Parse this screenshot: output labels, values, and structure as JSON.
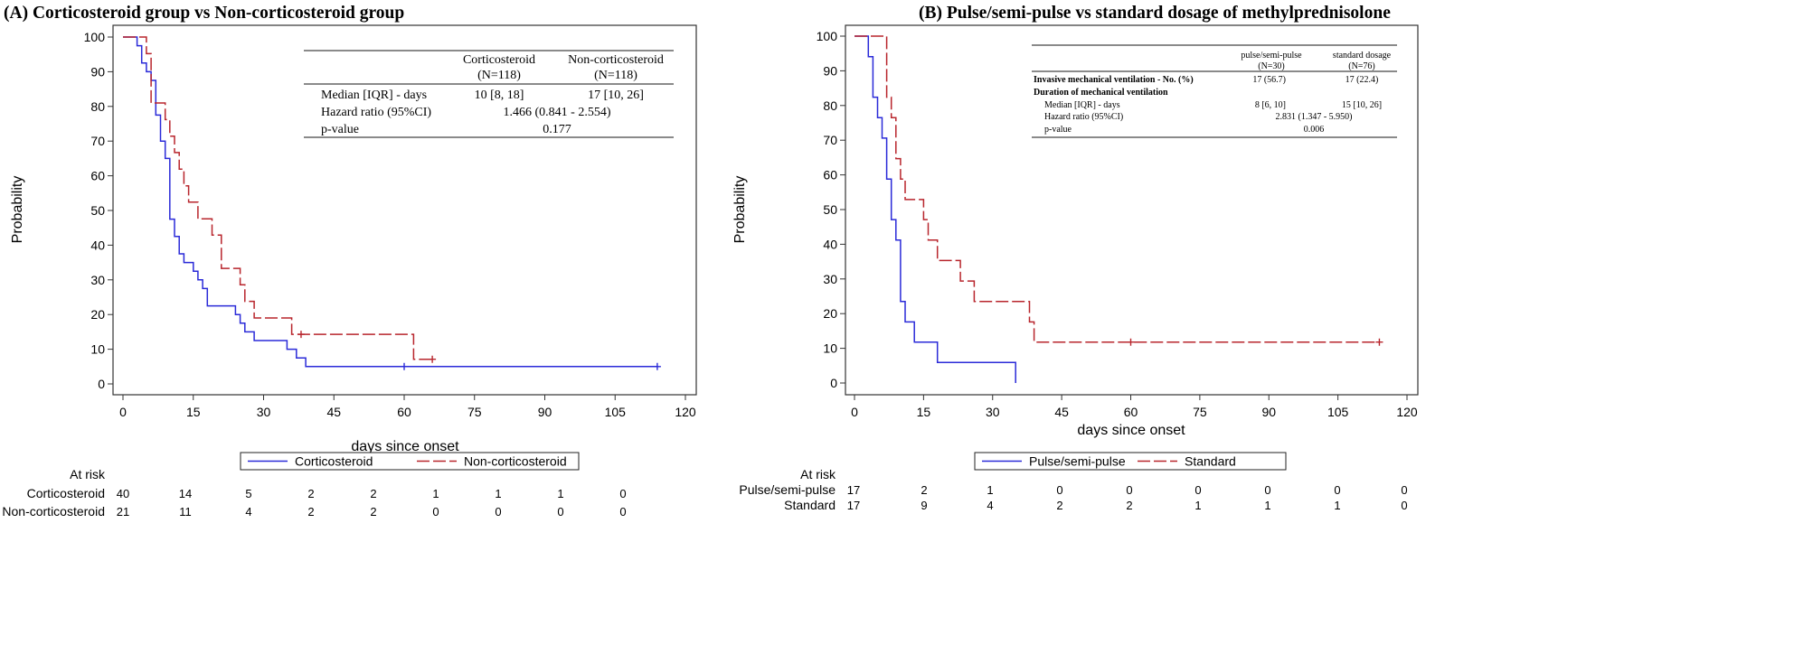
{
  "chart_data": [
    {
      "type": "line",
      "step": true,
      "title": "(A) Corticosteroid group vs Non-corticosteroid group",
      "xlabel": "days since onset",
      "ylabel": "Probability",
      "xlim": [
        0,
        120
      ],
      "ylim": [
        0,
        100
      ],
      "x_ticks": [
        0,
        15,
        30,
        45,
        60,
        75,
        90,
        105,
        120
      ],
      "y_ticks": [
        0,
        10,
        20,
        30,
        40,
        50,
        60,
        70,
        80,
        90,
        100
      ],
      "grid": false,
      "legend_position": "bottom",
      "series": [
        {
          "name": "Corticosteroid",
          "color": "#2a2ad8",
          "dash": "solid",
          "x": [
            0,
            3,
            4,
            5,
            6,
            7,
            8,
            9,
            10,
            11,
            12,
            13,
            14,
            15,
            16,
            17,
            18,
            24,
            25,
            26,
            28,
            35,
            37,
            39,
            114
          ],
          "y": [
            100,
            97.5,
            92.5,
            90,
            87.5,
            77.5,
            70,
            65,
            47.5,
            42.5,
            37.5,
            35,
            35,
            32.5,
            30,
            27.5,
            22.5,
            20,
            17.5,
            15,
            12.5,
            10,
            7.5,
            5,
            5
          ],
          "censored_x": [
            60,
            114
          ],
          "censored_y": [
            5,
            5
          ]
        },
        {
          "name": "Non-corticosteroid",
          "color": "#b8252c",
          "dash": "dashed",
          "x": [
            0,
            5,
            6,
            7,
            9,
            10,
            11,
            12,
            13,
            14,
            16,
            19,
            21,
            25,
            26,
            28,
            36,
            62,
            66
          ],
          "y": [
            100,
            95.2,
            81,
            81,
            76.2,
            71.4,
            66.7,
            61.9,
            57.1,
            52.4,
            47.6,
            42.9,
            33.3,
            28.6,
            23.8,
            19,
            14.3,
            7.1,
            7.1
          ],
          "censored_x": [
            38,
            66
          ],
          "censored_y": [
            14.3,
            7.1
          ]
        }
      ],
      "inset_table": {
        "col_headers": [
          "Corticosteroid",
          "Non-corticosteroid"
        ],
        "col_sub": [
          "(N=118)",
          "(N=118)"
        ],
        "rows": [
          {
            "label": "Median [IQR] - days",
            "values": [
              "10 [8, 18]",
              "17 [10, 26]"
            ],
            "span": ""
          },
          {
            "label": "Hazard ratio (95%CI)",
            "values": [],
            "span": "1.466 (0.841 - 2.554)"
          },
          {
            "label": "p-value",
            "values": [],
            "span": "0.177"
          }
        ]
      },
      "at_risk": {
        "title": "At risk",
        "rows": [
          {
            "label": "Corticosteroid",
            "values": [
              "40",
              "14",
              "5",
              "2",
              "2",
              "1",
              "1",
              "1",
              "0"
            ]
          },
          {
            "label": "Non-corticosteroid",
            "values": [
              "21",
              "11",
              "4",
              "2",
              "2",
              "0",
              "0",
              "0",
              "0"
            ]
          }
        ]
      }
    },
    {
      "type": "line",
      "step": true,
      "title": "(B) Pulse/semi-pulse vs standard dosage of methylprednisolone",
      "xlabel": "days since onset",
      "ylabel": "Probability",
      "xlim": [
        0,
        120
      ],
      "ylim": [
        0,
        100
      ],
      "x_ticks": [
        0,
        15,
        30,
        45,
        60,
        75,
        90,
        105,
        120
      ],
      "y_ticks": [
        0,
        10,
        20,
        30,
        40,
        50,
        60,
        70,
        80,
        90,
        100
      ],
      "grid": false,
      "legend_position": "bottom",
      "series": [
        {
          "name": "Pulse/semi-pulse",
          "color": "#2a2ad8",
          "dash": "solid",
          "x": [
            0,
            3,
            4,
            5,
            6,
            7,
            8,
            9,
            10,
            11,
            13,
            18,
            35,
            35
          ],
          "y": [
            100,
            94.1,
            82.4,
            76.5,
            70.6,
            58.8,
            47.1,
            41.2,
            23.5,
            17.6,
            11.8,
            5.9,
            5.9,
            0
          ]
        },
        {
          "name": "Standard",
          "color": "#b8252c",
          "dash": "dashed",
          "x": [
            0,
            7,
            8,
            9,
            10,
            11,
            12,
            15,
            16,
            17,
            18,
            23,
            25,
            26,
            38,
            39,
            114
          ],
          "y": [
            100,
            82.4,
            76.5,
            64.7,
            58.8,
            52.9,
            52.9,
            47.1,
            41.2,
            41.2,
            35.3,
            29.4,
            29.4,
            23.5,
            17.6,
            11.8,
            11.8
          ],
          "censored_x": [
            60,
            114
          ],
          "censored_y": [
            11.8,
            11.8
          ]
        }
      ],
      "inset_table": {
        "col_headers": [
          "pulse/semi-pulse",
          "standard dosage"
        ],
        "col_sub": [
          "(N=30)",
          "(N=76)"
        ],
        "rows": [
          {
            "label": "Invasive  mechanical  ventilation  - No. (%)",
            "values": [
              "17 (56.7)",
              "17 (22.4)"
            ],
            "span": "",
            "bold": true,
            "indent": false
          },
          {
            "label": "Duration of mechanical ventilation",
            "values": [],
            "span": "",
            "bold": true,
            "indent": false
          },
          {
            "label": "Median [IQR]  - days",
            "values": [
              "8 [6, 10]",
              "15 [10, 26]"
            ],
            "span": "",
            "bold": false,
            "indent": true
          },
          {
            "label": "Hazard ratio (95%CI)",
            "values": [],
            "span": "2.831 (1.347 - 5.950)",
            "bold": false,
            "indent": true
          },
          {
            "label": "p-value",
            "values": [],
            "span": "0.006",
            "bold": false,
            "indent": true
          }
        ]
      },
      "at_risk": {
        "title": "At risk",
        "rows": [
          {
            "label": "Pulse/semi-pulse",
            "values": [
              "17",
              "2",
              "1",
              "0",
              "0",
              "0",
              "0",
              "0",
              "0"
            ]
          },
          {
            "label": "Standard",
            "values": [
              "17",
              "9",
              "4",
              "2",
              "2",
              "1",
              "1",
              "1",
              "0"
            ]
          }
        ]
      }
    }
  ]
}
